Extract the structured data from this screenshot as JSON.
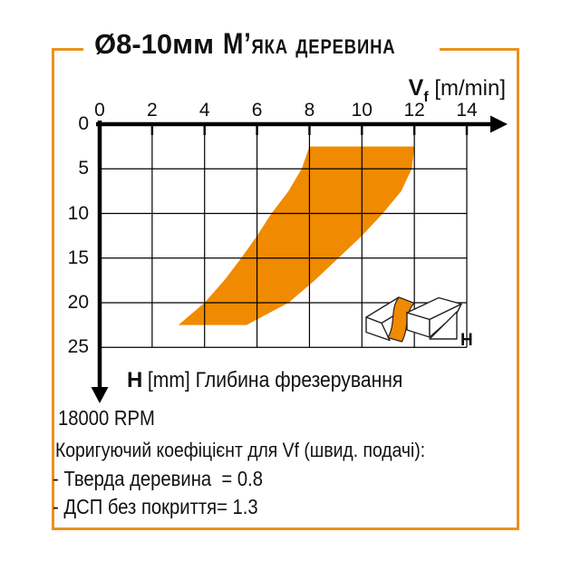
{
  "title": {
    "diameter": "Ø8-10мм",
    "material": "М’яка деревина"
  },
  "axes": {
    "x_label_main": "V",
    "x_label_sub": "f",
    "x_label_unit": " [m/min]",
    "y_label_main": "H",
    "y_label_rest": " [mm] Глибина фрезерування"
  },
  "icon": {
    "label": "H"
  },
  "notes": {
    "rpm": "18000 RPM",
    "coef_title": "Коригуючий коефіцієнт для Vf (швид. подачі):",
    "coef_line1": "- Тверда деревина  = 0.8",
    "coef_line2": "- ДСП без покриття= 1.3"
  },
  "colors": {
    "band_orange": "#F08A00",
    "frame_orange": "#E8921F",
    "axis_black": "#000000"
  },
  "chart_data": {
    "type": "area",
    "title": "Ø8-10мм М’яка деревина",
    "xlabel": "Vf [m/min]",
    "ylabel": "H [mm] Глибина фрезерування",
    "xlim": [
      0,
      14
    ],
    "ylim": [
      0,
      25
    ],
    "y_axis_inverted": true,
    "x_ticks": [
      0,
      2,
      4,
      6,
      8,
      10,
      12,
      14
    ],
    "y_ticks": [
      0,
      5,
      10,
      15,
      20,
      25
    ],
    "grid": true,
    "band": {
      "H": [
        2.5,
        5.0,
        7.5,
        10.0,
        12.5,
        15.0,
        17.5,
        20.0,
        22.5
      ],
      "vf_min": [
        8.0,
        7.7,
        7.2,
        6.55,
        6.0,
        5.4,
        4.75,
        4.0,
        3.0
      ],
      "vf_max": [
        12.0,
        11.9,
        11.5,
        10.8,
        10.0,
        9.1,
        8.2,
        7.2,
        5.6
      ]
    },
    "rpm": 18000,
    "vf_correction": [
      {
        "material": "Тверда деревина",
        "factor": 0.8
      },
      {
        "material": "ДСП без покриття",
        "factor": 1.3
      }
    ]
  }
}
